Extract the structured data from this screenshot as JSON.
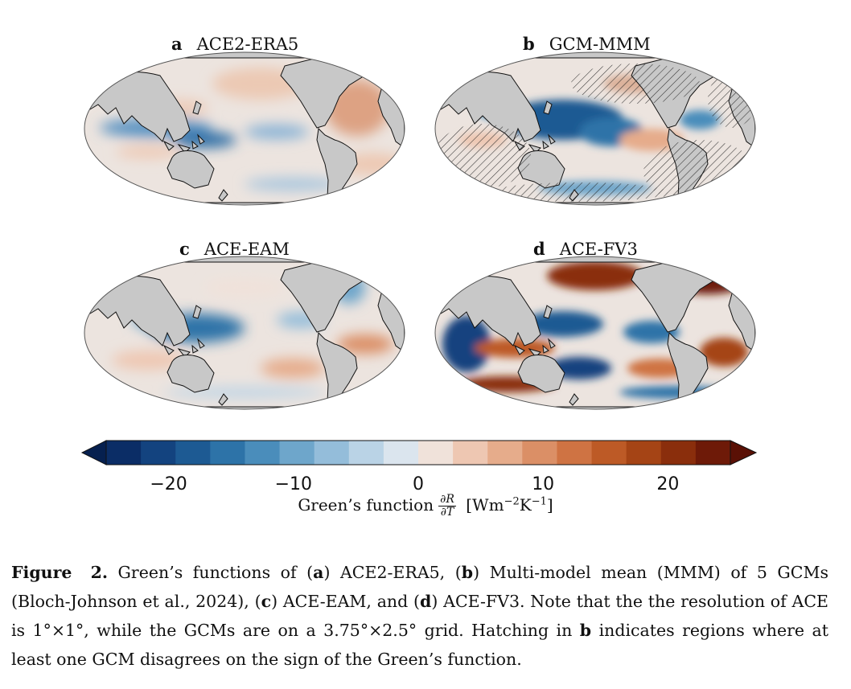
{
  "panels": [
    {
      "letter": "a",
      "title": "ACE2-ERA5"
    },
    {
      "letter": "b",
      "title": "GCM-MMM"
    },
    {
      "letter": "c",
      "title": "ACE-EAM"
    },
    {
      "letter": "d",
      "title": "ACE-FV3"
    }
  ],
  "colorbar": {
    "ticks": [
      "−20",
      "−10",
      "0",
      "10",
      "20"
    ],
    "tick_values": [
      -20,
      -10,
      0,
      10,
      20
    ],
    "range": [
      -25,
      25
    ],
    "colors": [
      "#0b2d66",
      "#13437f",
      "#1d5a93",
      "#2d73a8",
      "#4a8dbb",
      "#6ea6cb",
      "#94bdda",
      "#bad3e6",
      "#dbe5ee",
      "#f0e2da",
      "#eec7b2",
      "#e6ac8b",
      "#db8f66",
      "#cf7343",
      "#bd5a26",
      "#a54415",
      "#8a2e0c",
      "#6e1a08"
    ],
    "label_text": "Green’s function",
    "label_num": "∂R",
    "label_den": "∂T",
    "label_units": "[Wm",
    "label_exp1": "−2",
    "label_k": "K",
    "label_exp2": "−1",
    "label_close": "]"
  },
  "caption": {
    "fig_label": "Figure 2.",
    "s1": " Green’s functions of (",
    "a": "a",
    "s2": ") ACE2-ERA5, (",
    "b": "b",
    "s3": ") Multi-model mean (MMM) of 5 GCMs (Bloch-Johnson et al., 2024), (",
    "c": "c",
    "s4": ") ACE-EAM, and (",
    "d": "d",
    "s5": ") ACE-FV3. Note that the the resolution of ACE is 1°×1°, while the GCMs are on a 3.75°×2.5° grid. Hatching in ",
    "b2": "b",
    "s6": " indicates regions where at least one GCM disagrees on the sign of the Green’s function."
  },
  "colors": {
    "land": "#c8c8c8",
    "ocean_neutral": "#e8e0dc",
    "coast": "#111111"
  }
}
